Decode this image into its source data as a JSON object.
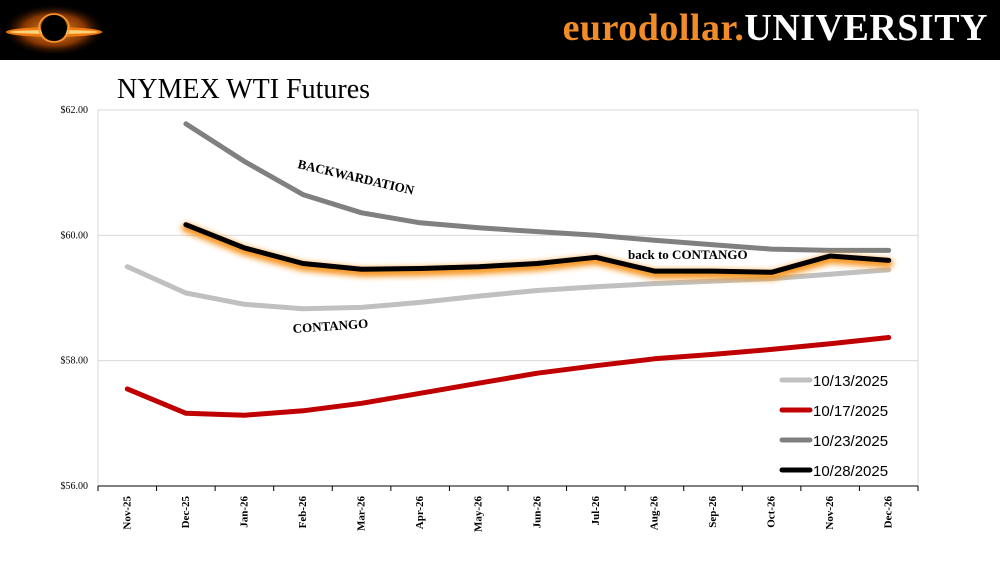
{
  "header": {
    "brand_part1": "eurodollar.",
    "brand_part2": "UNIVERSITY",
    "accent_color": "#f28c28",
    "logo_icon": "black-hole-logo-icon"
  },
  "chart_data": {
    "type": "line",
    "title": "NYMEX WTI Futures",
    "xlabel": "",
    "ylabel": "",
    "ylim": [
      56,
      62
    ],
    "yticks": [
      56,
      58,
      60,
      62
    ],
    "ytick_labels": [
      "$56.00",
      "$58.00",
      "$60.00",
      "$62.00"
    ],
    "categories": [
      "Nov-25",
      "Dec-25",
      "Jan-26",
      "Feb-26",
      "Mar-26",
      "Apr-26",
      "May-26",
      "Jun-26",
      "Jul-26",
      "Aug-26",
      "Sep-26",
      "Oct-26",
      "Nov-26",
      "Dec-26"
    ],
    "series": [
      {
        "name": "10/13/2025",
        "color": "#c0c0c0",
        "values": [
          59.5,
          59.08,
          58.9,
          58.83,
          58.85,
          58.93,
          59.03,
          59.12,
          59.18,
          59.23,
          59.27,
          59.31,
          59.38,
          59.45
        ]
      },
      {
        "name": "10/17/2025",
        "color": "#c00000",
        "values": [
          57.55,
          57.16,
          57.13,
          57.2,
          57.32,
          57.48,
          57.64,
          57.8,
          57.92,
          58.03,
          58.1,
          58.18,
          58.27,
          58.37
        ]
      },
      {
        "name": "10/23/2025",
        "color": "#808080",
        "values": [
          null,
          61.78,
          61.18,
          60.65,
          60.36,
          60.2,
          60.12,
          60.06,
          60.0,
          59.92,
          59.85,
          59.78,
          59.76,
          59.76
        ]
      },
      {
        "name": "10/28/2025",
        "color": "#000000",
        "glow": "#f7941d",
        "values": [
          null,
          60.17,
          59.8,
          59.55,
          59.46,
          59.47,
          59.5,
          59.55,
          59.65,
          59.43,
          59.43,
          59.41,
          59.67,
          59.6
        ]
      }
    ],
    "annotations": [
      {
        "text": "BACKWARDATION"
      },
      {
        "text": "back to CONTANGO"
      },
      {
        "text": "CONTANGO"
      }
    ],
    "legend_position": "bottom-right",
    "grid": true
  }
}
